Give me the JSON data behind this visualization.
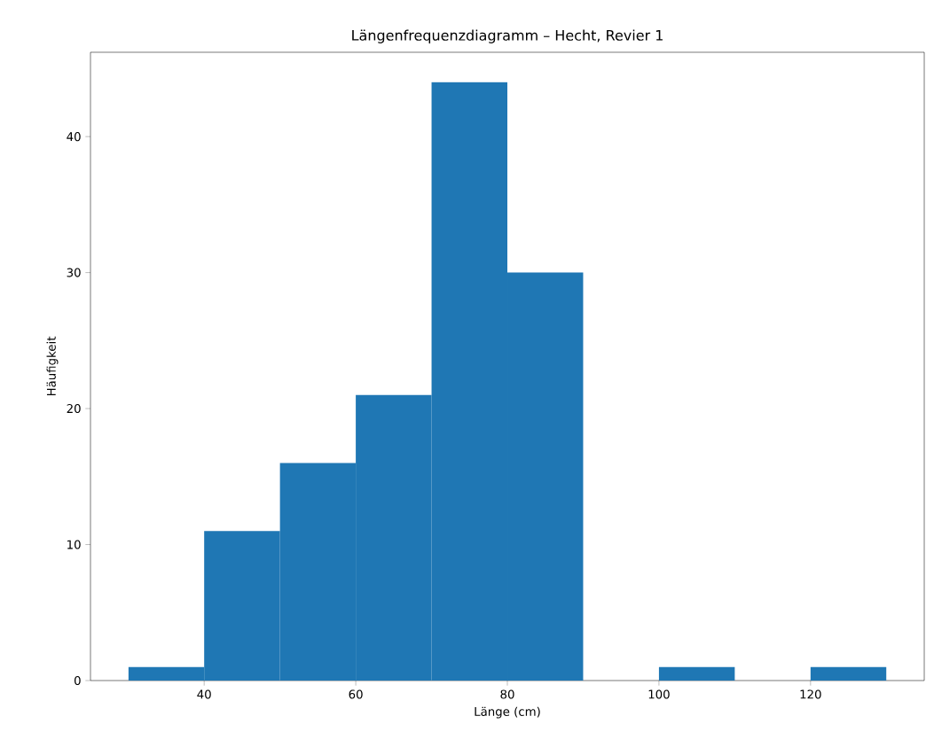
{
  "chart_data": {
    "type": "histogram",
    "title": "Längenfrequenzdiagramm – Hecht, Revier 1",
    "xlabel": "Länge (cm)",
    "ylabel": "Häufigkeit",
    "bins": [
      30,
      40,
      50,
      60,
      70,
      80,
      90,
      100,
      110,
      120,
      130
    ],
    "values": [
      1,
      11,
      16,
      21,
      44,
      30,
      0,
      1,
      0,
      1
    ],
    "color": "#1f77b4",
    "xlim": [
      25,
      135
    ],
    "ylim": [
      0,
      46.2
    ],
    "xticks": [
      40,
      60,
      80,
      100,
      120
    ],
    "yticks": [
      0,
      10,
      20,
      30,
      40
    ]
  }
}
